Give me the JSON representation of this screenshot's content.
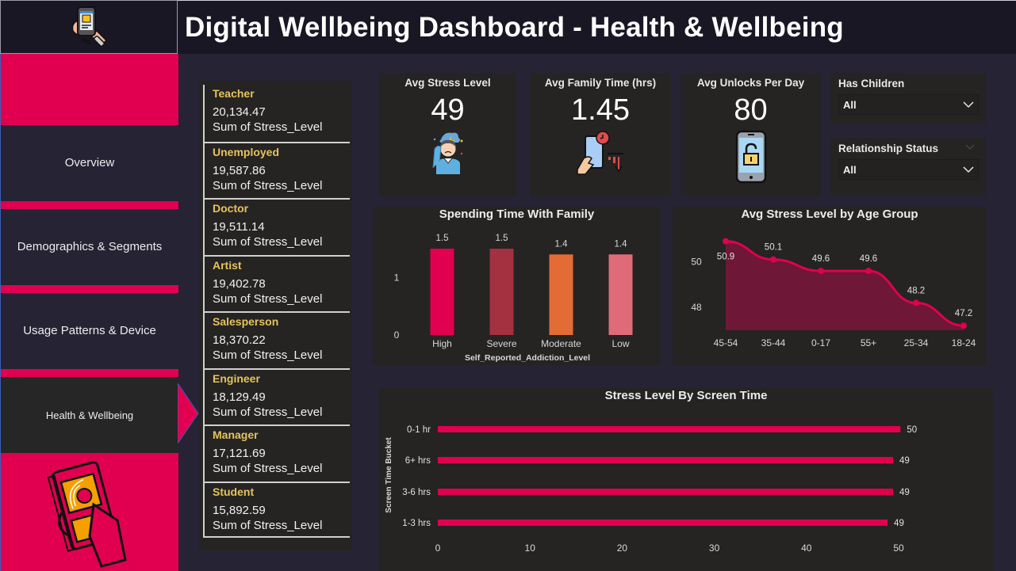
{
  "header": {
    "title": "Digital Wellbeing Dashboard - Health & Wellbeing",
    "logo_icon": "phone-in-hand-icon"
  },
  "sidebar": {
    "items": [
      {
        "label": "Overview",
        "active": false
      },
      {
        "label": "Demographics & Segments",
        "active": false
      },
      {
        "label": "Usage Patterns & Device",
        "active": false
      },
      {
        "label": "Health & Wellbeing",
        "active": true
      }
    ],
    "illustration": "person-stressed-by-phone-icon"
  },
  "occupations": {
    "measure_label": "Sum of Stress_Level",
    "items": [
      {
        "name": "Teacher",
        "value": "20,134.47"
      },
      {
        "name": "Unemployed",
        "value": "19,587.86"
      },
      {
        "name": "Doctor",
        "value": "19,511.14"
      },
      {
        "name": "Artist",
        "value": "19,402.78"
      },
      {
        "name": "Salesperson",
        "value": "18,370.22"
      },
      {
        "name": "Engineer",
        "value": "18,129.49"
      },
      {
        "name": "Manager",
        "value": "17,121.69"
      },
      {
        "name": "Student",
        "value": "15,892.59"
      }
    ]
  },
  "kpis": {
    "stress": {
      "title": "Avg Stress Level",
      "value": "49",
      "icon": "stressed-person-icon"
    },
    "family": {
      "title": "Avg Family Time (hrs)",
      "value": "1.45",
      "icon": "phone-time-decline-icon"
    },
    "unlocks": {
      "title": "Avg Unlocks Per Day",
      "value": "80",
      "icon": "phone-unlock-icon"
    }
  },
  "slicers": {
    "has_children": {
      "title": "Has Children",
      "selected": "All"
    },
    "relationship": {
      "title": "Relationship Status",
      "selected": "All"
    }
  },
  "colors": {
    "accent": "#e0004f",
    "card_bg": "#252423",
    "page_bg": "#262335",
    "header_bg": "#1a1725",
    "occupation_name": "#e6c35c"
  },
  "chart_data": [
    {
      "id": "family",
      "type": "bar",
      "title": "Spending Time With Family",
      "xlabel": "Self_Reported_Addiction_Level",
      "ylabel": "",
      "categories": [
        "High",
        "Severe",
        "Moderate",
        "Low"
      ],
      "values": [
        1.5,
        1.5,
        1.4,
        1.4
      ],
      "data_labels": [
        "1.5",
        "1.5",
        "1.4",
        "1.4"
      ],
      "bar_colors": [
        "#e0004f",
        "#a3313f",
        "#e36b36",
        "#e06b78"
      ],
      "yticks": [
        0,
        1
      ],
      "ylim": [
        0,
        1.5
      ],
      "grid": false
    },
    {
      "id": "age",
      "type": "area",
      "title": "Avg Stress Level by Age Group",
      "xlabel": "",
      "ylabel": "",
      "categories": [
        "45-54",
        "35-44",
        "0-17",
        "55+",
        "25-34",
        "18-24"
      ],
      "values": [
        50.9,
        50.1,
        49.6,
        49.6,
        48.2,
        47.2
      ],
      "data_labels": [
        "50.9",
        "50.1",
        "49.6",
        "49.6",
        "48.2",
        "47.2"
      ],
      "yticks": [
        48,
        50
      ],
      "ylim": [
        47.0,
        51.2
      ],
      "color": "#e0004f",
      "fill": "#6e1736",
      "grid": false
    },
    {
      "id": "screen",
      "type": "bar",
      "orientation": "horizontal",
      "title": "Stress Level By Screen Time",
      "xlabel": "",
      "ylabel": "Screen Time Bucket",
      "categories": [
        "0-1 hr",
        "6+ hrs",
        "3-6 hrs",
        "1-3 hrs"
      ],
      "values": [
        50.2,
        49.4,
        49.4,
        48.8
      ],
      "data_labels": [
        "50",
        "49",
        "49",
        "49"
      ],
      "xticks": [
        0,
        10,
        20,
        30,
        40,
        50
      ],
      "xlim": [
        0,
        50
      ],
      "color": "#e0004f",
      "grid": false
    }
  ]
}
